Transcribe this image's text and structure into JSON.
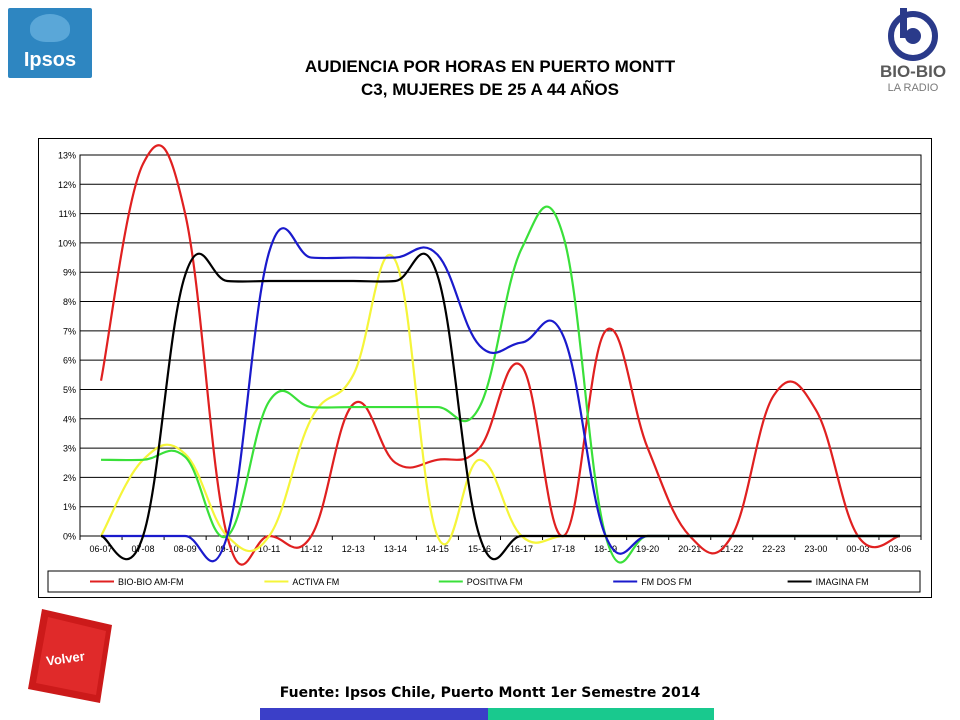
{
  "header": {
    "title_line1": "AUDIENCIA POR HORAS EN PUERTO MONTT",
    "title_line2": "C3, MUJERES DE 25 A 44 AÑOS"
  },
  "logos": {
    "left": "Ipsos",
    "right_line1": "BIO-BIO",
    "right_line2": "LA RADIO"
  },
  "footer": {
    "source": "Fuente: Ipsos Chile, Puerto Montt 1er Semestre 2014",
    "volver_label": "Volver",
    "bar_colors": [
      "#3b3fc8",
      "#19c98e"
    ]
  },
  "chart_data": {
    "type": "line",
    "title": "AUDIENCIA POR HORAS EN PUERTO MONTT",
    "subtitle": "C3, MUJERES DE 25 A 44 AÑOS",
    "xlabel": "",
    "ylabel": "",
    "ylim": [
      0,
      13
    ],
    "y_ticks": [
      "0%",
      "1%",
      "2%",
      "3%",
      "4%",
      "5%",
      "6%",
      "7%",
      "8%",
      "9%",
      "10%",
      "11%",
      "12%",
      "13%"
    ],
    "grid": "horizontal",
    "legend_position": "bottom",
    "categories": [
      "06-07",
      "07-08",
      "08-09",
      "09-10",
      "10-11",
      "11-12",
      "12-13",
      "13-14",
      "14-15",
      "15-16",
      "16-17",
      "17-18",
      "18-19",
      "19-20",
      "20-21",
      "21-22",
      "22-23",
      "23-00",
      "00-03",
      "03-06"
    ],
    "series": [
      {
        "name": "BIO-BIO AM-FM",
        "color": "#e02020",
        "values": [
          5.3,
          12.7,
          11.0,
          0,
          0,
          0,
          4.5,
          2.5,
          2.6,
          3.0,
          5.8,
          0,
          7.0,
          3.0,
          0,
          0,
          4.8,
          4.3,
          0,
          0
        ]
      },
      {
        "name": "ACTIVA FM",
        "color": "#f5f53a",
        "values": [
          0,
          2.6,
          2.8,
          0,
          0,
          4.0,
          5.5,
          9.4,
          0,
          2.6,
          0,
          0,
          0,
          0,
          0,
          0,
          0,
          0,
          0,
          0
        ]
      },
      {
        "name": "POSITIVA FM",
        "color": "#3ae03a",
        "values": [
          2.6,
          2.6,
          2.7,
          0,
          4.6,
          4.4,
          4.4,
          4.4,
          4.4,
          4.4,
          9.8,
          10.2,
          0,
          0,
          0,
          0,
          0,
          0,
          0,
          0
        ]
      },
      {
        "name": "FM DOS FM",
        "color": "#1a1acc",
        "values": [
          0,
          0,
          0,
          0,
          9.7,
          9.5,
          9.5,
          9.5,
          9.6,
          6.5,
          6.6,
          6.8,
          0,
          0,
          0,
          0,
          0,
          0,
          0,
          0
        ]
      },
      {
        "name": "IMAGINA FM",
        "color": "#000000",
        "values": [
          0,
          0,
          8.9,
          8.7,
          8.7,
          8.7,
          8.7,
          8.7,
          8.9,
          0,
          0,
          0,
          0,
          0,
          0,
          0,
          0,
          0,
          0,
          0
        ]
      }
    ]
  }
}
